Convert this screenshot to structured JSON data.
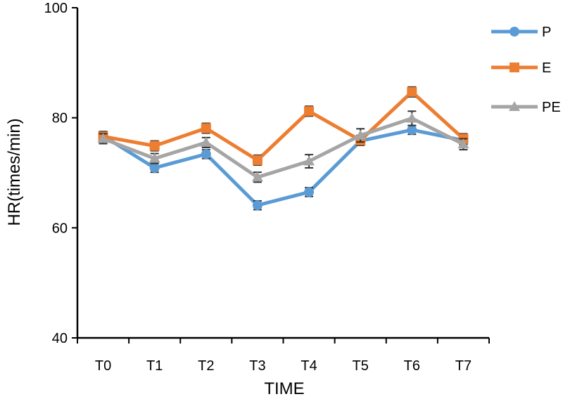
{
  "chart_data": {
    "type": "line",
    "title": "",
    "xlabel": "TIME",
    "ylabel": "HR(times/min)",
    "categories": [
      "T0",
      "T1",
      "T2",
      "T3",
      "T4",
      "T5",
      "T6",
      "T7"
    ],
    "ylim": [
      40,
      100
    ],
    "yticks": [
      40,
      60,
      80,
      100
    ],
    "grid": false,
    "legend_position": "top-right",
    "series": [
      {
        "name": "P",
        "color": "#5B9BD5",
        "marker": "circle",
        "values": [
          76.7,
          70.9,
          73.4,
          64.1,
          66.5,
          75.8,
          77.8,
          75.9
        ],
        "errors": [
          0.8,
          0.8,
          0.8,
          0.8,
          0.8,
          0.8,
          0.8,
          0.8
        ]
      },
      {
        "name": "E",
        "color": "#ED7D31",
        "marker": "square",
        "values": [
          76.6,
          74.9,
          78.1,
          72.3,
          81.2,
          75.9,
          84.7,
          76.2
        ],
        "errors": [
          0.9,
          0.9,
          0.9,
          0.9,
          0.9,
          0.9,
          0.9,
          0.9
        ]
      },
      {
        "name": "PE",
        "color": "#A5A5A5",
        "marker": "triangle",
        "values": [
          76.2,
          72.6,
          75.5,
          69.2,
          72.1,
          76.8,
          79.9,
          75.2
        ],
        "errors": [
          0.9,
          0.9,
          0.9,
          0.9,
          1.2,
          1.2,
          1.3,
          1.0
        ]
      }
    ]
  }
}
